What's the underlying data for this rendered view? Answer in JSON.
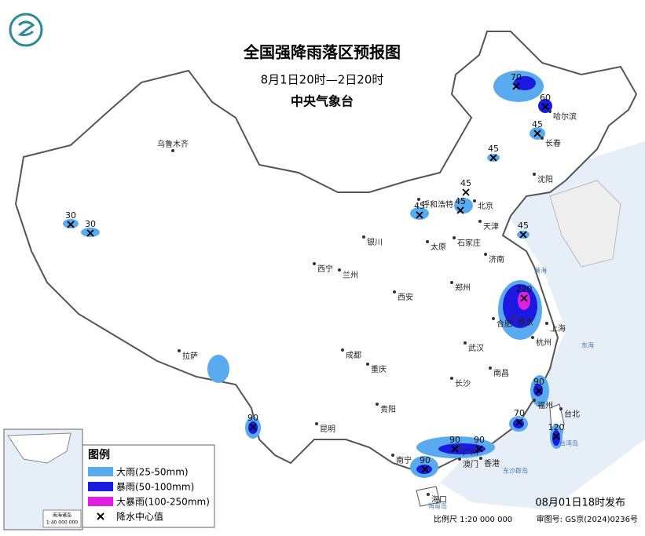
{
  "header": {
    "title": "全国强降雨落区预报图",
    "subtitle": "8月1日20时—2日20时",
    "issuer": "中央气象台"
  },
  "legend": {
    "title": "图例",
    "items": [
      "大雨(25-50mm)",
      "暴雨(50-100mm)",
      "大暴雨(100-250mm)",
      "降水中心值"
    ]
  },
  "cities": [
    "乌鲁木齐",
    "哈尔滨",
    "长春",
    "沈阳",
    "呼和浩特",
    "北京",
    "天津",
    "石家庄",
    "太原",
    "银川",
    "西宁",
    "兰州",
    "济南",
    "郑州",
    "西安",
    "合肥",
    "南京",
    "上海",
    "杭州",
    "武汉",
    "成都",
    "重庆",
    "拉萨",
    "长沙",
    "南昌",
    "贵阳",
    "昆明",
    "福州",
    "台北",
    "南宁",
    "广州",
    "澳门",
    "香港",
    "海口"
  ],
  "centers": [
    70,
    60,
    45,
    45,
    45,
    45,
    45,
    45,
    30,
    30,
    220,
    90,
    70,
    120,
    90,
    90,
    90,
    90
  ],
  "seas": [
    "黄海",
    "东海",
    "台湾岛",
    "东沙群岛",
    "海南岛"
  ],
  "inset": {
    "title": "南海诸岛",
    "scale": "1:40 000 000"
  },
  "footer": {
    "issued": "08月01日18时发布",
    "scale": "比例尺 1:20 000 000",
    "review": "审图号: GS京(2024)0236号"
  }
}
